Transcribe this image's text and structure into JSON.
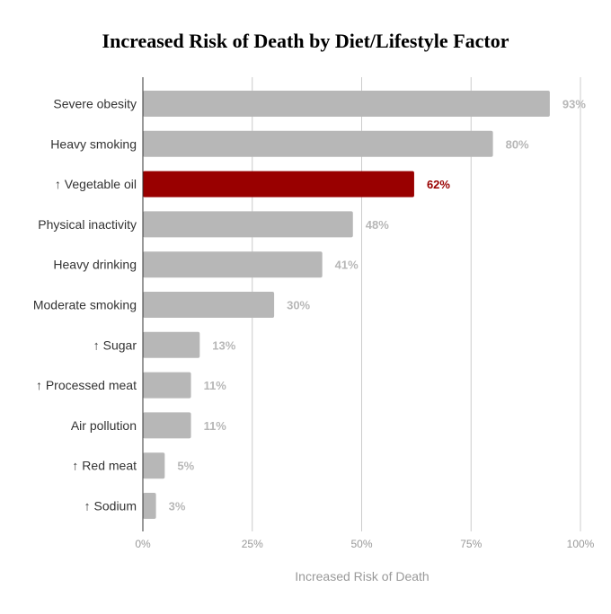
{
  "chart_data": {
    "type": "bar",
    "orientation": "horizontal",
    "title": "Increased Risk of Death by Diet/Lifestyle Factor",
    "xlabel": "Increased Risk of Death",
    "ylabel": "",
    "xlim": [
      0,
      100
    ],
    "grid": true,
    "categories": [
      "Severe obesity",
      "Heavy smoking",
      "↑ Vegetable oil",
      "Physical inactivity",
      "Heavy drinking",
      "Moderate smoking",
      "↑ Sugar",
      "↑ Processed meat",
      "Air pollution",
      "↑ Red meat",
      "↑ Sodium"
    ],
    "values": [
      93,
      80,
      62,
      48,
      41,
      30,
      13,
      11,
      11,
      5,
      3
    ],
    "value_labels": [
      "93%",
      "80%",
      "62%",
      "48%",
      "41%",
      "30%",
      "13%",
      "11%",
      "11%",
      "5%",
      "3%"
    ],
    "x_ticks": [
      0,
      25,
      50,
      75,
      100
    ],
    "x_tick_labels": [
      "0%",
      "25%",
      "50%",
      "75%",
      "100%"
    ],
    "highlight_index": 2,
    "colors": {
      "bar": "#b7b7b7",
      "highlight": "#990000",
      "label": "#b7b7b7",
      "highlight_label": "#990000",
      "grid": "#cccccc",
      "axis": "#333333"
    }
  }
}
